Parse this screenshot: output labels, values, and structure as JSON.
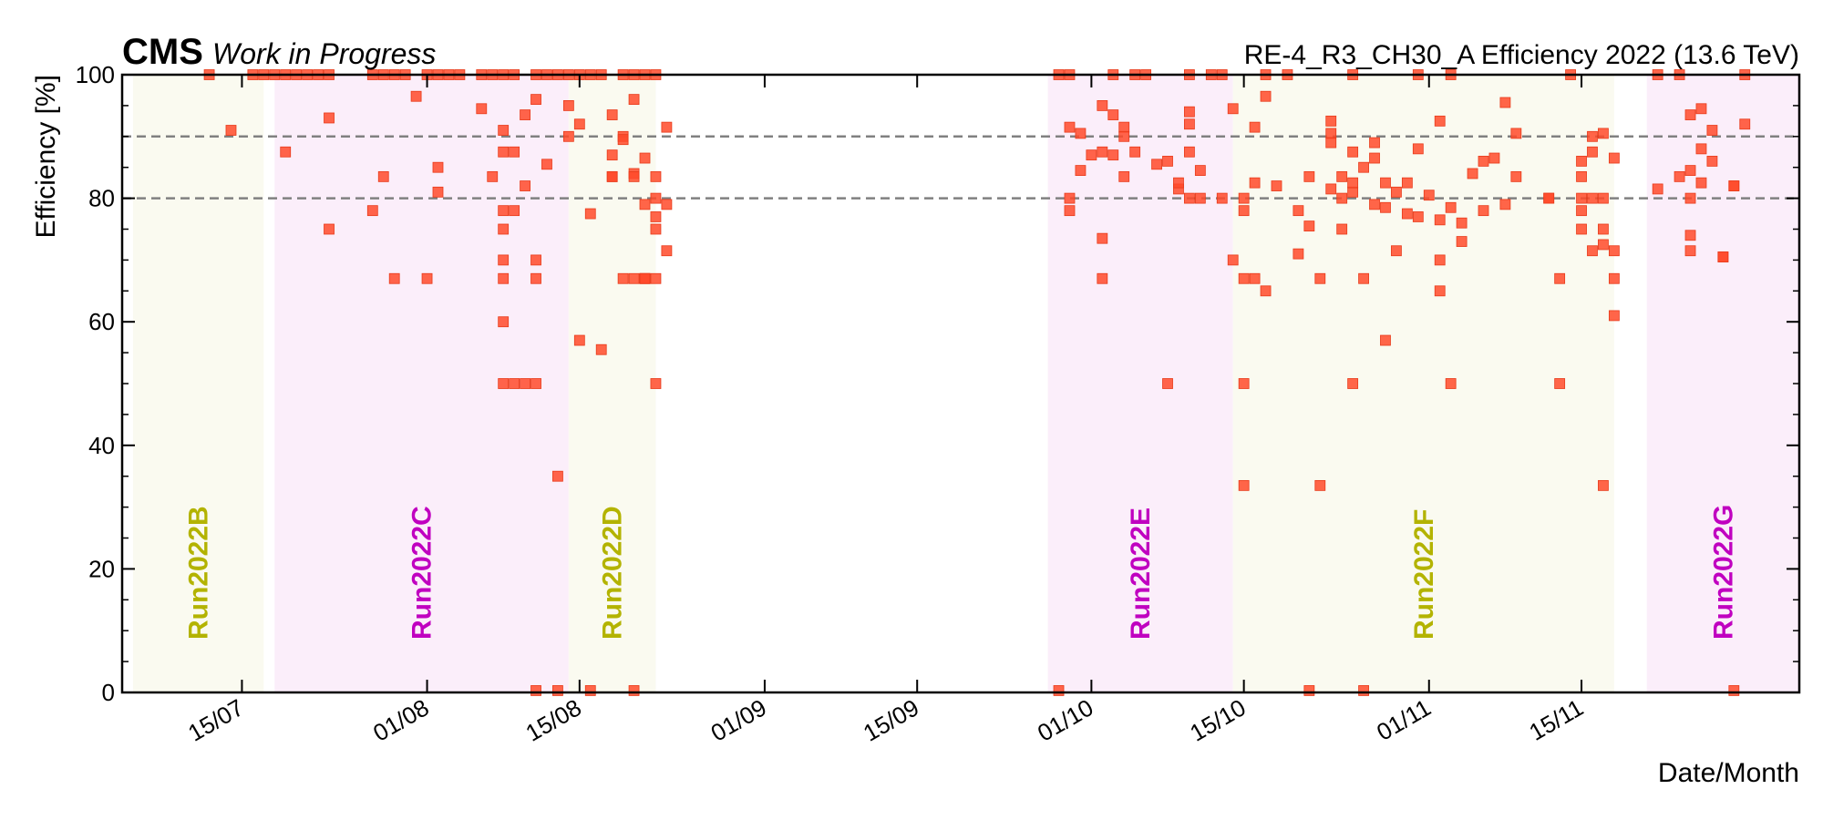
{
  "header": {
    "experiment": "CMS",
    "status": "Work in Progress",
    "title": "RE-4_R3_CH30_A Efficiency 2022 (13.6 TeV)"
  },
  "chart_data": {
    "type": "scatter",
    "title": "RE-4_R3_CH30_A Efficiency 2022 (13.6 TeV)",
    "xlabel": "Date/Month",
    "ylabel": "Efficiency [%]",
    "xlim": [
      "2022-07-04",
      "2022-12-05"
    ],
    "ylim": [
      0,
      100
    ],
    "x_ticks": [
      {
        "date": "2022-07-15",
        "label": "15/07"
      },
      {
        "date": "2022-08-01",
        "label": "01/08"
      },
      {
        "date": "2022-08-15",
        "label": "15/08"
      },
      {
        "date": "2022-09-01",
        "label": "01/09"
      },
      {
        "date": "2022-09-15",
        "label": "15/09"
      },
      {
        "date": "2022-10-01",
        "label": "01/10"
      },
      {
        "date": "2022-10-15",
        "label": "15/10"
      },
      {
        "date": "2022-11-01",
        "label": "01/11"
      },
      {
        "date": "2022-11-15",
        "label": "15/11"
      }
    ],
    "y_ticks": [
      0,
      20,
      40,
      60,
      80,
      100
    ],
    "reference_lines": [
      80,
      90
    ],
    "marker_color": "#ff4a2a",
    "runs": [
      {
        "name": "Run2022B",
        "start": "2022-07-05",
        "end": "2022-07-17",
        "color": "#b3b300"
      },
      {
        "name": "Run2022C",
        "start": "2022-07-18",
        "end": "2022-08-14",
        "color": "#c000c0"
      },
      {
        "name": "Run2022D",
        "start": "2022-08-14",
        "end": "2022-08-22",
        "color": "#b3b300"
      },
      {
        "name": "Run2022E",
        "start": "2022-09-27",
        "end": "2022-10-14",
        "color": "#c000c0"
      },
      {
        "name": "Run2022F",
        "start": "2022-10-14",
        "end": "2022-11-18",
        "color": "#b3b300"
      },
      {
        "name": "Run2022G",
        "start": "2022-11-21",
        "end": "2022-12-05",
        "color": "#c000c0"
      }
    ],
    "points": [
      [
        "2022-07-12",
        100
      ],
      [
        "2022-07-14",
        91
      ],
      [
        "2022-07-16",
        100
      ],
      [
        "2022-07-17",
        100
      ],
      [
        "2022-07-18",
        100
      ],
      [
        "2022-07-19",
        87.5
      ],
      [
        "2022-07-19",
        100
      ],
      [
        "2022-07-20",
        100
      ],
      [
        "2022-07-21",
        100
      ],
      [
        "2022-07-22",
        100
      ],
      [
        "2022-07-23",
        100
      ],
      [
        "2022-07-23",
        93
      ],
      [
        "2022-07-23",
        75
      ],
      [
        "2022-07-27",
        100
      ],
      [
        "2022-07-27",
        78
      ],
      [
        "2022-07-28",
        83.5
      ],
      [
        "2022-07-28",
        100
      ],
      [
        "2022-07-29",
        100
      ],
      [
        "2022-07-29",
        67
      ],
      [
        "2022-07-30",
        100
      ],
      [
        "2022-07-31",
        96.5
      ],
      [
        "2022-08-01",
        100
      ],
      [
        "2022-08-01",
        67
      ],
      [
        "2022-08-02",
        100
      ],
      [
        "2022-08-02",
        81
      ],
      [
        "2022-08-02",
        85
      ],
      [
        "2022-08-03",
        100
      ],
      [
        "2022-08-04",
        100
      ],
      [
        "2022-08-06",
        94.5
      ],
      [
        "2022-08-06",
        100
      ],
      [
        "2022-08-07",
        100
      ],
      [
        "2022-08-07",
        83.5
      ],
      [
        "2022-08-08",
        100
      ],
      [
        "2022-08-08",
        91
      ],
      [
        "2022-08-08",
        87.5
      ],
      [
        "2022-08-08",
        75
      ],
      [
        "2022-08-08",
        67
      ],
      [
        "2022-08-08",
        60
      ],
      [
        "2022-08-08",
        50
      ],
      [
        "2022-08-08",
        78
      ],
      [
        "2022-08-08",
        70
      ],
      [
        "2022-08-09",
        100
      ],
      [
        "2022-08-09",
        87.5
      ],
      [
        "2022-08-09",
        78
      ],
      [
        "2022-08-09",
        50
      ],
      [
        "2022-08-10",
        93.5
      ],
      [
        "2022-08-10",
        82
      ],
      [
        "2022-08-10",
        50
      ],
      [
        "2022-08-11",
        96
      ],
      [
        "2022-08-11",
        70
      ],
      [
        "2022-08-11",
        67
      ],
      [
        "2022-08-11",
        50
      ],
      [
        "2022-08-11",
        0.3
      ],
      [
        "2022-08-11",
        100
      ],
      [
        "2022-08-12",
        85.5
      ],
      [
        "2022-08-12",
        100
      ],
      [
        "2022-08-13",
        35
      ],
      [
        "2022-08-13",
        0.3
      ],
      [
        "2022-08-13",
        100
      ],
      [
        "2022-08-14",
        90
      ],
      [
        "2022-08-14",
        100
      ],
      [
        "2022-08-14",
        95
      ],
      [
        "2022-08-15",
        92
      ],
      [
        "2022-08-15",
        57
      ],
      [
        "2022-08-15",
        100
      ],
      [
        "2022-08-16",
        0.3
      ],
      [
        "2022-08-16",
        100
      ],
      [
        "2022-08-16",
        77.5
      ],
      [
        "2022-08-17",
        55.5
      ],
      [
        "2022-08-17",
        100
      ],
      [
        "2022-08-18",
        93.5
      ],
      [
        "2022-08-18",
        87
      ],
      [
        "2022-08-18",
        83.5
      ],
      [
        "2022-08-18",
        83.5
      ],
      [
        "2022-08-19",
        90
      ],
      [
        "2022-08-19",
        89.5
      ],
      [
        "2022-08-19",
        67
      ],
      [
        "2022-08-19",
        100
      ],
      [
        "2022-08-20",
        67
      ],
      [
        "2022-08-20",
        0.3
      ],
      [
        "2022-08-20",
        100
      ],
      [
        "2022-08-20",
        84
      ],
      [
        "2022-08-20",
        83.5
      ],
      [
        "2022-08-20",
        96
      ],
      [
        "2022-08-21",
        79
      ],
      [
        "2022-08-21",
        67
      ],
      [
        "2022-08-21",
        100
      ],
      [
        "2022-08-21",
        86.5
      ],
      [
        "2022-08-21",
        67
      ],
      [
        "2022-08-21",
        67
      ],
      [
        "2022-08-22",
        80
      ],
      [
        "2022-08-22",
        77
      ],
      [
        "2022-08-22",
        75
      ],
      [
        "2022-08-22",
        50
      ],
      [
        "2022-08-22",
        83.5
      ],
      [
        "2022-08-22",
        100
      ],
      [
        "2022-08-22",
        67
      ],
      [
        "2022-08-23",
        91.5
      ],
      [
        "2022-08-23",
        79
      ],
      [
        "2022-08-23",
        71.5
      ],
      [
        "2022-09-28",
        0.3
      ],
      [
        "2022-09-28",
        100
      ],
      [
        "2022-09-29",
        91.5
      ],
      [
        "2022-09-29",
        80
      ],
      [
        "2022-09-29",
        78
      ],
      [
        "2022-09-29",
        100
      ],
      [
        "2022-09-30",
        84.5
      ],
      [
        "2022-09-30",
        90.5
      ],
      [
        "2022-10-01",
        87
      ],
      [
        "2022-10-02",
        67
      ],
      [
        "2022-10-02",
        95
      ],
      [
        "2022-10-02",
        73.5
      ],
      [
        "2022-10-02",
        87.5
      ],
      [
        "2022-10-03",
        93.5
      ],
      [
        "2022-10-03",
        100
      ],
      [
        "2022-10-03",
        87
      ],
      [
        "2022-10-04",
        91.5
      ],
      [
        "2022-10-04",
        90
      ],
      [
        "2022-10-04",
        83.5
      ],
      [
        "2022-10-05",
        87.5
      ],
      [
        "2022-10-05",
        100
      ],
      [
        "2022-10-06",
        100
      ],
      [
        "2022-10-07",
        85.5
      ],
      [
        "2022-10-08",
        86
      ],
      [
        "2022-10-08",
        50
      ],
      [
        "2022-10-09",
        81.5
      ],
      [
        "2022-10-09",
        82.5
      ],
      [
        "2022-10-10",
        80
      ],
      [
        "2022-10-10",
        87.5
      ],
      [
        "2022-10-10",
        94
      ],
      [
        "2022-10-10",
        92
      ],
      [
        "2022-10-10",
        100
      ],
      [
        "2022-10-11",
        80
      ],
      [
        "2022-10-11",
        84.5
      ],
      [
        "2022-10-12",
        100
      ],
      [
        "2022-10-13",
        80
      ],
      [
        "2022-10-13",
        100
      ],
      [
        "2022-10-14",
        70
      ],
      [
        "2022-10-14",
        94.5
      ],
      [
        "2022-10-15",
        78
      ],
      [
        "2022-10-15",
        50
      ],
      [
        "2022-10-15",
        33.5
      ],
      [
        "2022-10-15",
        80
      ],
      [
        "2022-10-15",
        67
      ],
      [
        "2022-10-16",
        82.5
      ],
      [
        "2022-10-16",
        67
      ],
      [
        "2022-10-16",
        91.5
      ],
      [
        "2022-10-17",
        96.5
      ],
      [
        "2022-10-17",
        100
      ],
      [
        "2022-10-17",
        65
      ],
      [
        "2022-10-18",
        82
      ],
      [
        "2022-10-19",
        100
      ],
      [
        "2022-10-20",
        71
      ],
      [
        "2022-10-20",
        78
      ],
      [
        "2022-10-21",
        75.5
      ],
      [
        "2022-10-21",
        0.3
      ],
      [
        "2022-10-21",
        83.5
      ],
      [
        "2022-10-22",
        67
      ],
      [
        "2022-10-22",
        33.5
      ],
      [
        "2022-10-23",
        90.5
      ],
      [
        "2022-10-23",
        92.5
      ],
      [
        "2022-10-23",
        81.5
      ],
      [
        "2022-10-23",
        89
      ],
      [
        "2022-10-24",
        80
      ],
      [
        "2022-10-24",
        75
      ],
      [
        "2022-10-24",
        83.5
      ],
      [
        "2022-10-25",
        81
      ],
      [
        "2022-10-25",
        82.5
      ],
      [
        "2022-10-25",
        50
      ],
      [
        "2022-10-25",
        100
      ],
      [
        "2022-10-25",
        87.5
      ],
      [
        "2022-10-26",
        85
      ],
      [
        "2022-10-26",
        67
      ],
      [
        "2022-10-26",
        0.3
      ],
      [
        "2022-10-27",
        86.5
      ],
      [
        "2022-10-27",
        89
      ],
      [
        "2022-10-27",
        79
      ],
      [
        "2022-10-28",
        57
      ],
      [
        "2022-10-28",
        78.5
      ],
      [
        "2022-10-28",
        82.5
      ],
      [
        "2022-10-29",
        71.5
      ],
      [
        "2022-10-29",
        81
      ],
      [
        "2022-10-30",
        82.5
      ],
      [
        "2022-10-30",
        77.5
      ],
      [
        "2022-10-31",
        88
      ],
      [
        "2022-10-31",
        77
      ],
      [
        "2022-10-31",
        100
      ],
      [
        "2022-11-01",
        80.5
      ],
      [
        "2022-11-02",
        76.5
      ],
      [
        "2022-11-02",
        70
      ],
      [
        "2022-11-02",
        92.5
      ],
      [
        "2022-11-02",
        65
      ],
      [
        "2022-11-03",
        78.5
      ],
      [
        "2022-11-03",
        100
      ],
      [
        "2022-11-03",
        50
      ],
      [
        "2022-11-04",
        73
      ],
      [
        "2022-11-04",
        76
      ],
      [
        "2022-11-05",
        84
      ],
      [
        "2022-11-06",
        78
      ],
      [
        "2022-11-06",
        86
      ],
      [
        "2022-11-07",
        86.5
      ],
      [
        "2022-11-08",
        79
      ],
      [
        "2022-11-08",
        95.5
      ],
      [
        "2022-11-09",
        90.5
      ],
      [
        "2022-11-09",
        83.5
      ],
      [
        "2022-11-12",
        80
      ],
      [
        "2022-11-12",
        80
      ],
      [
        "2022-11-13",
        67
      ],
      [
        "2022-11-13",
        50
      ],
      [
        "2022-11-14",
        100
      ],
      [
        "2022-11-15",
        78
      ],
      [
        "2022-11-15",
        75
      ],
      [
        "2022-11-15",
        80
      ],
      [
        "2022-11-15",
        83.5
      ],
      [
        "2022-11-15",
        86
      ],
      [
        "2022-11-16",
        90
      ],
      [
        "2022-11-16",
        87.5
      ],
      [
        "2022-11-16",
        71.5
      ],
      [
        "2022-11-16",
        80
      ],
      [
        "2022-11-17",
        90.5
      ],
      [
        "2022-11-17",
        75
      ],
      [
        "2022-11-17",
        80
      ],
      [
        "2022-11-17",
        33.5
      ],
      [
        "2022-11-17",
        72.5
      ],
      [
        "2022-11-18",
        71.5
      ],
      [
        "2022-11-18",
        67
      ],
      [
        "2022-11-18",
        61
      ],
      [
        "2022-11-18",
        86.5
      ],
      [
        "2022-11-22",
        81.5
      ],
      [
        "2022-11-22",
        100
      ],
      [
        "2022-11-24",
        83.5
      ],
      [
        "2022-11-24",
        100
      ],
      [
        "2022-11-25",
        80
      ],
      [
        "2022-11-25",
        84.5
      ],
      [
        "2022-11-25",
        93.5
      ],
      [
        "2022-11-25",
        74
      ],
      [
        "2022-11-25",
        71.5
      ],
      [
        "2022-11-26",
        88
      ],
      [
        "2022-11-26",
        94.5
      ],
      [
        "2022-11-26",
        82.5
      ],
      [
        "2022-11-27",
        91
      ],
      [
        "2022-11-27",
        86
      ],
      [
        "2022-11-28",
        70.5
      ],
      [
        "2022-11-28",
        70.5
      ],
      [
        "2022-11-29",
        82
      ],
      [
        "2022-11-29",
        82
      ],
      [
        "2022-11-29",
        0.3
      ],
      [
        "2022-11-30",
        92
      ],
      [
        "2022-11-30",
        100
      ]
    ]
  }
}
